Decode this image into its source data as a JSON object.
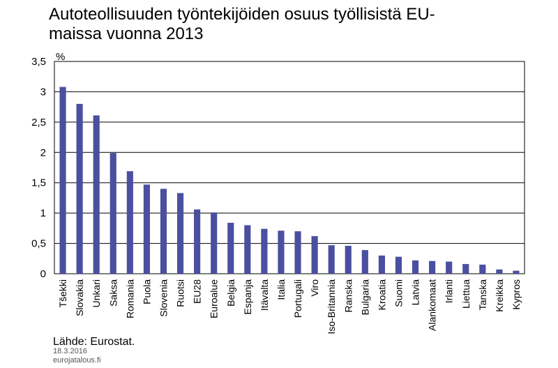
{
  "chart_data": {
    "type": "bar",
    "title": [
      "Autoteollisuuden työntekijöiden osuus työllisistä EU-",
      "maissa vuonna 2013"
    ],
    "y_unit": "%",
    "categories": [
      "Tšekki",
      "Slovakia",
      "Unkari",
      "Saksa",
      "Romania",
      "Puola",
      "Slovenia",
      "Ruotsi",
      "EU28",
      "Euroalue",
      "Belgia",
      "Espanja",
      "Itävalta",
      "Italia",
      "Portugali",
      "Viro",
      "Iso-Britannia",
      "Ranska",
      "Bulgaria",
      "Kroatia",
      "Suomi",
      "Latvia",
      "Alankomaat",
      "Irlanti",
      "Liettua",
      "Tanska",
      "Kreikka",
      "Kypros"
    ],
    "values": [
      3.08,
      2.8,
      2.61,
      1.99,
      1.69,
      1.47,
      1.4,
      1.33,
      1.06,
      1.01,
      0.84,
      0.8,
      0.74,
      0.71,
      0.7,
      0.62,
      0.47,
      0.46,
      0.39,
      0.3,
      0.28,
      0.22,
      0.21,
      0.2,
      0.16,
      0.15,
      0.07,
      0.05
    ],
    "color": "#4b4f9f",
    "ylim": [
      0,
      3.5
    ],
    "yticks": [
      0,
      {
        "value": 0.5,
        "label": "0,5"
      },
      1,
      {
        "value": 1.5,
        "label": "1,5"
      },
      2,
      {
        "value": 2.5,
        "label": "2,5"
      },
      3,
      {
        "value": 3.5,
        "label": "3,5"
      }
    ],
    "grid": true,
    "source": "Lähde: Eurostat.",
    "date": "18.3.2016",
    "site": "eurojatalous.fi"
  }
}
